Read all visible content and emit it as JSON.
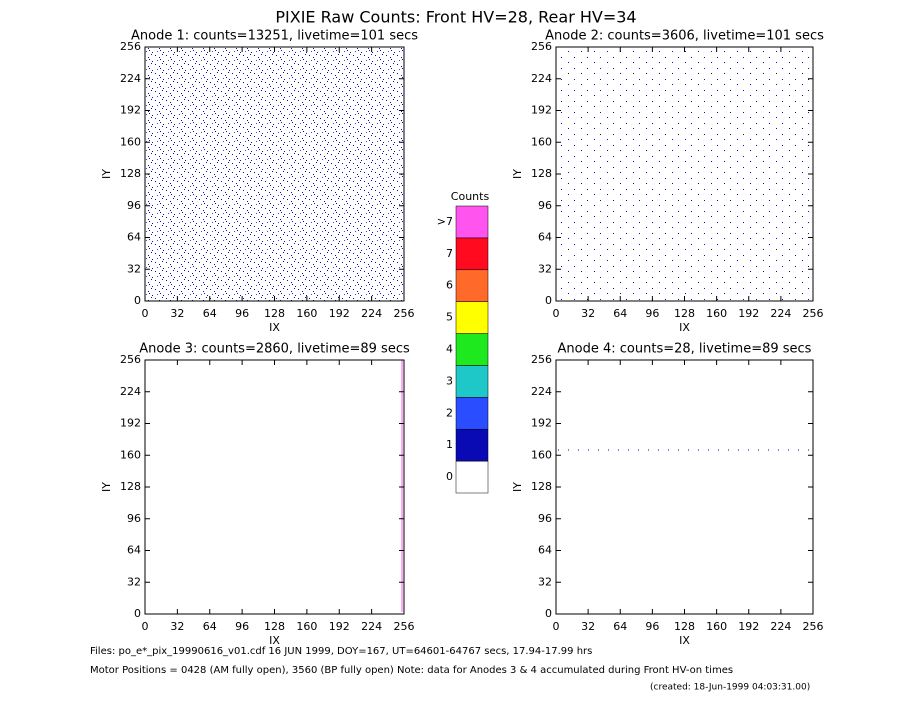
{
  "chart_data": [
    {
      "type": "heatmap",
      "title": "Anode 1: counts=13251, livetime=101 secs",
      "xlabel": "IX",
      "ylabel": "IY",
      "xlim": [
        0,
        256
      ],
      "ylim": [
        0,
        256
      ],
      "xticks": [
        0,
        32,
        64,
        96,
        128,
        160,
        192,
        224,
        256
      ],
      "yticks": [
        0,
        32,
        64,
        96,
        128,
        160,
        192,
        224,
        256
      ]
    },
    {
      "type": "heatmap",
      "title": "Anode 2: counts=3606, livetime=101 secs",
      "xlabel": "IX",
      "ylabel": "IY",
      "xlim": [
        0,
        256
      ],
      "ylim": [
        0,
        256
      ],
      "xticks": [
        0,
        32,
        64,
        96,
        128,
        160,
        192,
        224,
        256
      ],
      "yticks": [
        0,
        32,
        64,
        96,
        128,
        160,
        192,
        224,
        256
      ]
    },
    {
      "type": "heatmap",
      "title": "Anode 3: counts=2860, livetime=89 secs",
      "xlabel": "IX",
      "ylabel": "IY",
      "xlim": [
        0,
        256
      ],
      "ylim": [
        0,
        256
      ],
      "xticks": [
        0,
        32,
        64,
        96,
        128,
        160,
        192,
        224,
        256
      ],
      "yticks": [
        0,
        32,
        64,
        96,
        128,
        160,
        192,
        224,
        256
      ]
    },
    {
      "type": "heatmap",
      "title": "Anode 4: counts=28, livetime=89 secs",
      "xlabel": "IX",
      "ylabel": "IY",
      "xlim": [
        0,
        256
      ],
      "ylim": [
        0,
        256
      ],
      "xticks": [
        0,
        32,
        64,
        96,
        128,
        160,
        192,
        224,
        256
      ],
      "yticks": [
        0,
        32,
        64,
        96,
        128,
        160,
        192,
        224,
        256
      ]
    }
  ],
  "header": {
    "title": "PIXIE Raw Counts:  Front HV=28, Rear HV=34"
  },
  "colorbar": {
    "title": "Counts",
    "levels": [
      {
        "label": "0",
        "color": "#ffffff"
      },
      {
        "label": "1",
        "color": "#0a0ab4"
      },
      {
        "label": "2",
        "color": "#2a4dff"
      },
      {
        "label": "3",
        "color": "#1ec8c8"
      },
      {
        "label": "4",
        "color": "#1ee81e"
      },
      {
        "label": "5",
        "color": "#ffff00"
      },
      {
        "label": "6",
        "color": "#ff6a2a"
      },
      {
        "label": "7",
        "color": "#ff0a1e"
      },
      {
        "label": ">7",
        "color": "#ff55ee"
      }
    ]
  },
  "footer": {
    "files": "Files: po_e*_pix_19990616_v01.cdf    16 JUN 1999, DOY=167, UT=64601-64767 secs, 17.94-17.99 hrs",
    "motor": "Motor Positions = 0428 (AM fully open), 3560 (BP fully open)    Note: data for Anodes 3 & 4 accumulated during Front HV-on times",
    "created": "(created: 18-Jun-1999 04:03:31.00)"
  }
}
